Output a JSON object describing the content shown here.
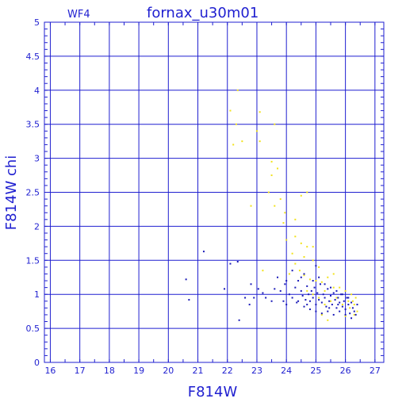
{
  "chart_data": {
    "type": "scatter",
    "title": "fornax_u30m01",
    "subtitle": "WF4",
    "xlabel": "F814W",
    "ylabel": "F814W  chi",
    "xlim": [
      15.8,
      27.3
    ],
    "ylim": [
      0,
      5
    ],
    "xticks": [
      "16",
      "17",
      "18",
      "19",
      "20",
      "21",
      "22",
      "23",
      "24",
      "25",
      "26",
      "27"
    ],
    "yticks": [
      "0",
      "0.5",
      "1",
      "1.5",
      "2",
      "2.5",
      "3",
      "3.5",
      "4",
      "4.5",
      "5"
    ],
    "grid": true,
    "colors": {
      "axis": "#1f1fd0",
      "grid": "#1f1fd0",
      "blue_points": "#1a1ab8",
      "yellow_points": "#f2e21a"
    },
    "series": [
      {
        "color_key": "yellow_points",
        "points": [
          [
            22.35,
            4.0
          ],
          [
            22.1,
            3.7
          ],
          [
            23.1,
            3.68
          ],
          [
            22.3,
            3.5
          ],
          [
            23.0,
            3.4
          ],
          [
            22.2,
            3.2
          ],
          [
            22.5,
            3.25
          ],
          [
            23.1,
            3.25
          ],
          [
            23.6,
            3.5
          ],
          [
            23.5,
            2.95
          ],
          [
            23.5,
            2.75
          ],
          [
            23.7,
            2.85
          ],
          [
            23.8,
            2.4
          ],
          [
            23.6,
            2.3
          ],
          [
            23.4,
            2.5
          ],
          [
            23.95,
            2.2
          ],
          [
            24.3,
            2.1
          ],
          [
            24.7,
            2.5
          ],
          [
            24.5,
            2.45
          ],
          [
            22.8,
            2.3
          ],
          [
            23.9,
            2.05
          ],
          [
            24.0,
            1.8
          ],
          [
            24.2,
            1.6
          ],
          [
            24.3,
            1.85
          ],
          [
            24.5,
            1.75
          ],
          [
            24.7,
            1.7
          ],
          [
            24.9,
            1.7
          ],
          [
            24.6,
            1.55
          ],
          [
            24.9,
            1.5
          ],
          [
            25.1,
            1.4
          ],
          [
            24.3,
            1.45
          ],
          [
            24.45,
            1.35
          ],
          [
            24.6,
            1.28
          ],
          [
            24.8,
            1.22
          ],
          [
            25.0,
            1.2
          ],
          [
            25.2,
            1.18
          ],
          [
            25.4,
            1.25
          ],
          [
            25.6,
            1.1
          ],
          [
            25.8,
            1.1
          ],
          [
            26.0,
            1.05
          ],
          [
            26.2,
            1.0
          ],
          [
            26.35,
            0.95
          ],
          [
            26.1,
            0.9
          ],
          [
            26.3,
            0.85
          ],
          [
            25.9,
            0.85
          ],
          [
            25.5,
            0.9
          ],
          [
            25.3,
            0.85
          ],
          [
            25.1,
            0.95
          ],
          [
            24.9,
            1.0
          ],
          [
            24.7,
            1.05
          ],
          [
            25.7,
            0.95
          ],
          [
            26.15,
            0.8
          ],
          [
            26.4,
            0.75
          ],
          [
            25.2,
            0.7
          ],
          [
            25.4,
            0.62
          ],
          [
            26.0,
            0.68
          ],
          [
            26.25,
            0.9
          ],
          [
            26.3,
            0.7
          ],
          [
            23.2,
            1.35
          ],
          [
            24.1,
            1.3
          ],
          [
            25.3,
            1.05
          ],
          [
            25.6,
            1.3
          ]
        ]
      },
      {
        "color_key": "blue_points",
        "points": [
          [
            20.6,
            1.22
          ],
          [
            20.7,
            0.92
          ],
          [
            21.2,
            1.63
          ],
          [
            21.9,
            1.08
          ],
          [
            22.1,
            1.45
          ],
          [
            22.35,
            1.48
          ],
          [
            22.4,
            0.62
          ],
          [
            22.6,
            0.95
          ],
          [
            22.8,
            1.15
          ],
          [
            22.75,
            0.85
          ],
          [
            22.9,
            0.95
          ],
          [
            23.05,
            1.08
          ],
          [
            23.2,
            1.02
          ],
          [
            23.3,
            0.95
          ],
          [
            23.5,
            0.9
          ],
          [
            23.6,
            1.08
          ],
          [
            23.8,
            1.05
          ],
          [
            23.9,
            0.9
          ],
          [
            23.95,
            1.15
          ],
          [
            24.0,
            0.85
          ],
          [
            24.1,
            1.0
          ],
          [
            24.2,
            0.95
          ],
          [
            24.3,
            1.1
          ],
          [
            24.35,
            0.88
          ],
          [
            24.4,
            1.2
          ],
          [
            24.5,
            1.05
          ],
          [
            24.55,
            0.98
          ],
          [
            24.6,
            1.3
          ],
          [
            24.65,
            0.92
          ],
          [
            24.7,
            1.12
          ],
          [
            24.75,
            1.0
          ],
          [
            24.8,
            0.9
          ],
          [
            24.85,
            1.05
          ],
          [
            24.9,
            0.95
          ],
          [
            24.95,
            1.1
          ],
          [
            25.0,
            1.42
          ],
          [
            25.0,
            0.85
          ],
          [
            25.05,
            1.02
          ],
          [
            25.1,
            0.92
          ],
          [
            25.15,
            1.15
          ],
          [
            25.2,
            0.88
          ],
          [
            25.25,
            1.0
          ],
          [
            25.3,
            0.95
          ],
          [
            25.35,
            0.82
          ],
          [
            25.4,
            1.08
          ],
          [
            25.45,
            0.9
          ],
          [
            25.5,
            0.98
          ],
          [
            25.55,
            0.85
          ],
          [
            25.6,
            1.02
          ],
          [
            25.65,
            0.92
          ],
          [
            25.7,
            0.8
          ],
          [
            25.75,
            0.95
          ],
          [
            25.8,
            0.88
          ],
          [
            25.85,
            1.0
          ],
          [
            25.9,
            0.82
          ],
          [
            25.95,
            0.9
          ],
          [
            26.0,
            0.78
          ],
          [
            26.05,
            0.95
          ],
          [
            26.1,
            0.85
          ],
          [
            26.15,
            0.72
          ],
          [
            26.2,
            0.88
          ],
          [
            26.25,
            0.8
          ],
          [
            26.3,
            0.75
          ],
          [
            26.35,
            0.7
          ],
          [
            26.4,
            0.85
          ],
          [
            24.5,
            1.25
          ],
          [
            24.2,
            1.35
          ],
          [
            24.0,
            1.2
          ],
          [
            23.7,
            1.25
          ],
          [
            24.4,
            0.9
          ],
          [
            24.6,
            0.82
          ],
          [
            24.8,
            0.78
          ],
          [
            25.0,
            0.75
          ],
          [
            25.2,
            0.72
          ],
          [
            25.4,
            0.75
          ],
          [
            25.6,
            0.7
          ],
          [
            25.8,
            0.75
          ],
          [
            26.0,
            0.7
          ],
          [
            25.3,
            1.15
          ],
          [
            25.5,
            1.1
          ],
          [
            25.7,
            1.05
          ],
          [
            25.9,
            1.0
          ],
          [
            26.1,
            0.95
          ],
          [
            24.9,
            1.2
          ],
          [
            25.1,
            1.25
          ],
          [
            24.7,
            0.85
          ],
          [
            25.45,
            0.8
          ],
          [
            25.75,
            0.85
          ],
          [
            26.2,
            0.65
          ]
        ]
      }
    ]
  }
}
